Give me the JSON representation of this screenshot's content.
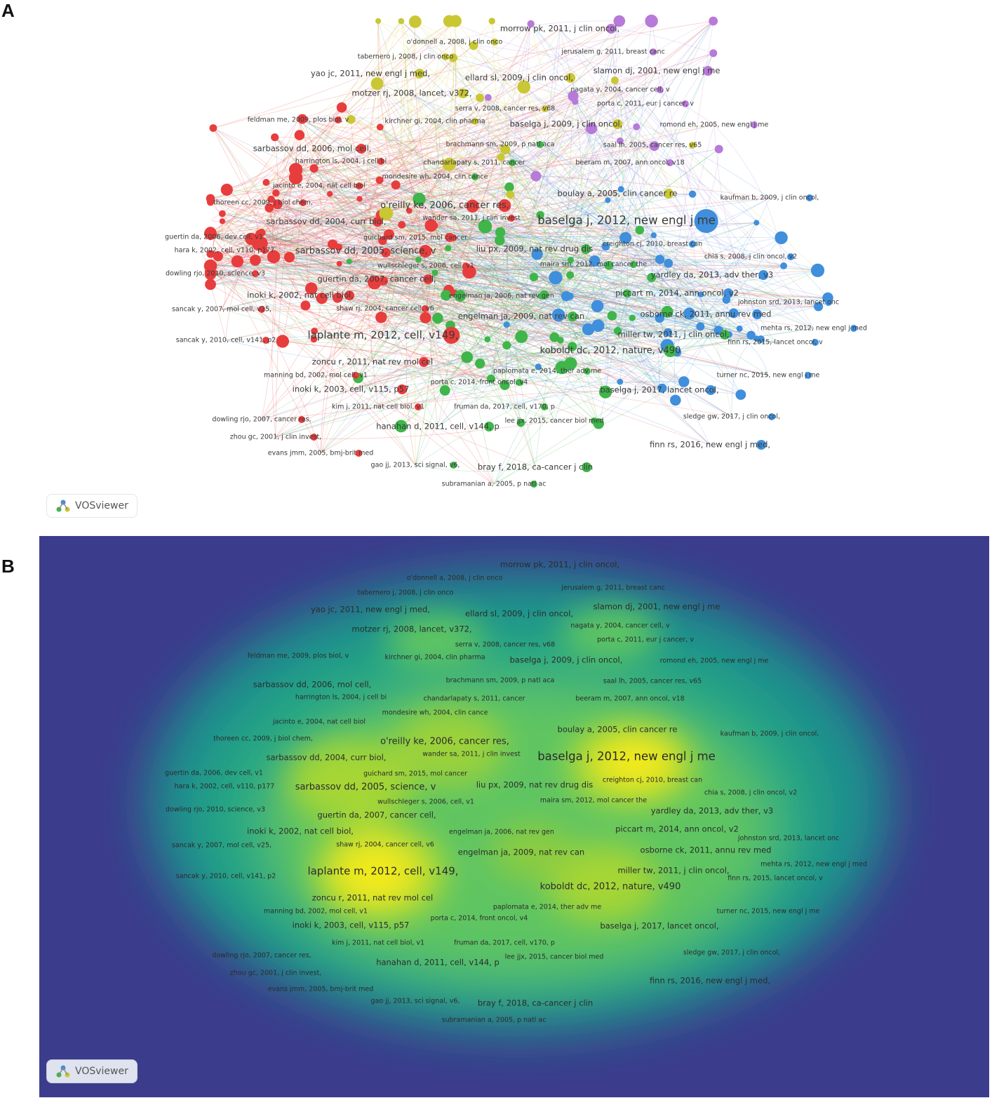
{
  "panels": {
    "a": "A",
    "b": "B"
  },
  "logo_text": "VOSviewer",
  "colors": {
    "red": "#e83d3d",
    "green": "#3fb54a",
    "blue": "#3f8fdc",
    "yellow": "#c9c733",
    "purple": "#b77ad8",
    "density_low": "#3b3c8c",
    "density_mid": "#21a08a",
    "density_high": "#f2ea1c"
  },
  "nodes": [
    {
      "label": "morrow pk, 2011, j clin oncol,",
      "cluster": "purple",
      "weight": 3
    },
    {
      "label": "o'donnell a, 2008, j clin onco",
      "cluster": "yellow",
      "weight": 2
    },
    {
      "label": "jerusalem g, 2011, breast canc",
      "cluster": "purple",
      "weight": 2
    },
    {
      "label": "tabernero j, 2008, j clin onco",
      "cluster": "yellow",
      "weight": 2
    },
    {
      "label": "yao jc, 2011, new engl j med,",
      "cluster": "yellow",
      "weight": 3
    },
    {
      "label": "ellard sl, 2009, j clin oncol,",
      "cluster": "yellow",
      "weight": 3
    },
    {
      "label": "slamon dj, 2001, new engl j me",
      "cluster": "purple",
      "weight": 3
    },
    {
      "label": "motzer rj, 2008, lancet, v372,",
      "cluster": "yellow",
      "weight": 3
    },
    {
      "label": "nagata y, 2004, cancer cell, v",
      "cluster": "purple",
      "weight": 2
    },
    {
      "label": "porta c, 2011, eur j cancer, v",
      "cluster": "purple",
      "weight": 2
    },
    {
      "label": "serra v, 2008, cancer res, v68",
      "cluster": "yellow",
      "weight": 2
    },
    {
      "label": "feldman me, 2009, plos biol, v",
      "cluster": "red",
      "weight": 2
    },
    {
      "label": "kirchner gi, 2004, clin pharma",
      "cluster": "yellow",
      "weight": 2
    },
    {
      "label": "baselga j, 2009, j clin oncol,",
      "cluster": "yellow",
      "weight": 3
    },
    {
      "label": "romond eh, 2005, new engl j me",
      "cluster": "purple",
      "weight": 2
    },
    {
      "label": "brachmann sm, 2009, p natl aca",
      "cluster": "green",
      "weight": 2
    },
    {
      "label": "saal lh, 2005, cancer res, v65",
      "cluster": "yellow",
      "weight": 2
    },
    {
      "label": "sarbassov dd, 2006, mol cell,",
      "cluster": "red",
      "weight": 3
    },
    {
      "label": "harrington ls, 2004, j cell bi",
      "cluster": "red",
      "weight": 2
    },
    {
      "label": "chandarlapaty s, 2011, cancer",
      "cluster": "green",
      "weight": 2
    },
    {
      "label": "beeram m, 2007, ann oncol, v18",
      "cluster": "purple",
      "weight": 2
    },
    {
      "label": "mondesire wh, 2004, clin cance",
      "cluster": "green",
      "weight": 2
    },
    {
      "label": "jacinto e, 2004, nat cell biol",
      "cluster": "red",
      "weight": 2
    },
    {
      "label": "boulay a, 2005, clin cancer re",
      "cluster": "yellow",
      "weight": 3
    },
    {
      "label": "kaufman b, 2009, j clin oncol,",
      "cluster": "blue",
      "weight": 2
    },
    {
      "label": "thoreen cc, 2009, j biol chem,",
      "cluster": "red",
      "weight": 2
    },
    {
      "label": "o'reilly ke, 2006, cancer res,",
      "cluster": "red",
      "weight": 4
    },
    {
      "label": "wander sa, 2011, j clin invest",
      "cluster": "red",
      "weight": 2
    },
    {
      "label": "baselga j, 2012, new engl j me",
      "cluster": "blue",
      "weight": 6
    },
    {
      "label": "sarbassov dd, 2004, curr biol,",
      "cluster": "red",
      "weight": 3
    },
    {
      "label": "guertin da, 2006, dev cell, v1",
      "cluster": "red",
      "weight": 2
    },
    {
      "label": "guichard sm, 2015, mol cancer",
      "cluster": "red",
      "weight": 2
    },
    {
      "label": "creighton cj, 2010, breast can",
      "cluster": "blue",
      "weight": 2
    },
    {
      "label": "hara k, 2002, cell, v110, p177",
      "cluster": "red",
      "weight": 2
    },
    {
      "label": "sarbassov dd, 2005, science, v",
      "cluster": "red",
      "weight": 4
    },
    {
      "label": "liu px, 2009, nat rev drug dis",
      "cluster": "green",
      "weight": 3
    },
    {
      "label": "chia s, 2008, j clin oncol, v2",
      "cluster": "blue",
      "weight": 2
    },
    {
      "label": "wullschleger s, 2006, cell, v1",
      "cluster": "red",
      "weight": 2
    },
    {
      "label": "maira sm, 2012, mol cancer the",
      "cluster": "green",
      "weight": 2
    },
    {
      "label": "dowling rjo, 2010, science, v3",
      "cluster": "red",
      "weight": 2
    },
    {
      "label": "yardley da, 2013, adv ther, v3",
      "cluster": "blue",
      "weight": 3
    },
    {
      "label": "guertin da, 2007, cancer cell,",
      "cluster": "red",
      "weight": 3
    },
    {
      "label": "inoki k, 2002, nat cell biol,",
      "cluster": "red",
      "weight": 3
    },
    {
      "label": "engelman ja, 2006, nat rev gen",
      "cluster": "green",
      "weight": 2
    },
    {
      "label": "piccart m, 2014, ann oncol, v2",
      "cluster": "blue",
      "weight": 3
    },
    {
      "label": "johnston srd, 2013, lancet onc",
      "cluster": "blue",
      "weight": 2
    },
    {
      "label": "sancak y, 2007, mol cell, v25,",
      "cluster": "red",
      "weight": 2
    },
    {
      "label": "shaw rj, 2004, cancer cell, v6",
      "cluster": "red",
      "weight": 2
    },
    {
      "label": "engelman ja, 2009, nat rev can",
      "cluster": "green",
      "weight": 3
    },
    {
      "label": "osborne ck, 2011, annu rev med",
      "cluster": "blue",
      "weight": 3
    },
    {
      "label": "laplante m, 2012, cell, v149,",
      "cluster": "red",
      "weight": 5
    },
    {
      "label": "mehta rs, 2012, new engl j med",
      "cluster": "blue",
      "weight": 2
    },
    {
      "label": "miller tw, 2011, j clin oncol,",
      "cluster": "green",
      "weight": 3
    },
    {
      "label": "finn rs, 2015, lancet oncol, v",
      "cluster": "blue",
      "weight": 2
    },
    {
      "label": "sancak y, 2010, cell, v141, p2",
      "cluster": "red",
      "weight": 2
    },
    {
      "label": "koboldt dc, 2012, nature, v490",
      "cluster": "green",
      "weight": 4
    },
    {
      "label": "zoncu r, 2011, nat rev mol cel",
      "cluster": "red",
      "weight": 3
    },
    {
      "label": "paplomata e, 2014, ther adv me",
      "cluster": "green",
      "weight": 2
    },
    {
      "label": "manning bd, 2002, mol cell, v1",
      "cluster": "red",
      "weight": 2
    },
    {
      "label": "turner nc, 2015, new engl j me",
      "cluster": "blue",
      "weight": 2
    },
    {
      "label": "inoki k, 2003, cell, v115, p57",
      "cluster": "red",
      "weight": 3
    },
    {
      "label": "porta c, 2014, front oncol, v4",
      "cluster": "green",
      "weight": 2
    },
    {
      "label": "baselga j, 2017, lancet oncol,",
      "cluster": "blue",
      "weight": 3
    },
    {
      "label": "kim j, 2011, nat cell biol, v1",
      "cluster": "red",
      "weight": 2
    },
    {
      "label": "fruman da, 2017, cell, v170, p",
      "cluster": "green",
      "weight": 2
    },
    {
      "label": "dowling rjo, 2007, cancer res,",
      "cluster": "red",
      "weight": 2
    },
    {
      "label": "hanahan d, 2011, cell, v144, p",
      "cluster": "green",
      "weight": 3
    },
    {
      "label": "lee jjx, 2015, cancer biol med",
      "cluster": "green",
      "weight": 2
    },
    {
      "label": "sledge gw, 2017, j clin oncol,",
      "cluster": "blue",
      "weight": 2
    },
    {
      "label": "zhou gc, 2001, j clin invest,",
      "cluster": "red",
      "weight": 2
    },
    {
      "label": "finn rs, 2016, new engl j med,",
      "cluster": "blue",
      "weight": 3
    },
    {
      "label": "evans jmm, 2005, bmj-brit med",
      "cluster": "red",
      "weight": 2
    },
    {
      "label": "gao jj, 2013, sci signal, v6,",
      "cluster": "green",
      "weight": 2
    },
    {
      "label": "bray f, 2018, ca-cancer j clin",
      "cluster": "green",
      "weight": 3
    },
    {
      "label": "subramanian a, 2005, p natl ac",
      "cluster": "green",
      "weight": 2
    }
  ]
}
